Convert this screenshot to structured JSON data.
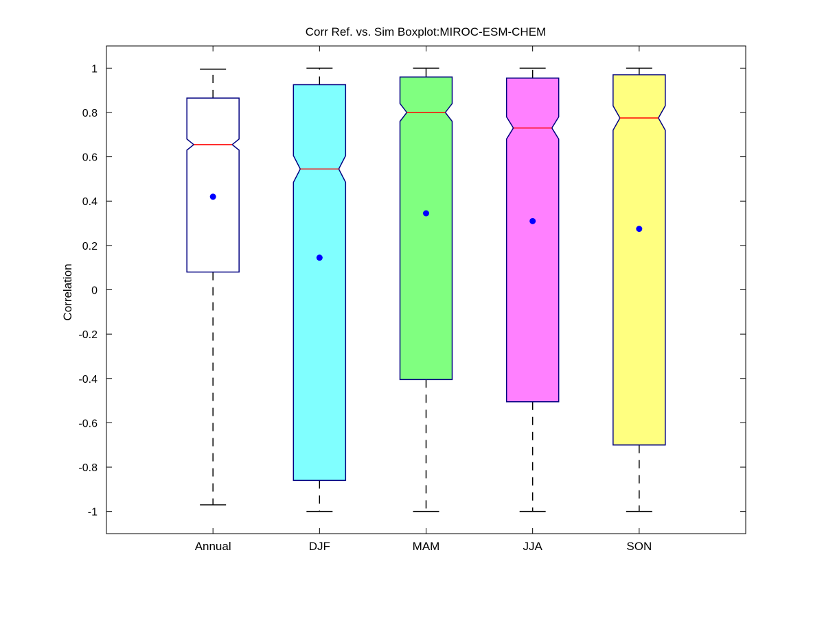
{
  "chart_data": {
    "type": "boxplot",
    "title": "Corr Ref. vs. Sim Boxplot:MIROC-ESM-CHEM",
    "xlabel": "",
    "ylabel": "Correlation",
    "ylim": [
      -1.1,
      1.1
    ],
    "yticks": [
      -1,
      -0.8,
      -0.6,
      -0.4,
      -0.2,
      0,
      0.2,
      0.4,
      0.6,
      0.8,
      1
    ],
    "ytick_labels": [
      "-1",
      "-0.8",
      "-0.6",
      "-0.4",
      "-0.2",
      "0",
      "0.2",
      "0.4",
      "0.6",
      "0.8",
      "1"
    ],
    "notched": true,
    "grid": false,
    "categories": [
      "Annual",
      "DJF",
      "MAM",
      "JJA",
      "SON"
    ],
    "boxes": [
      {
        "category": "Annual",
        "whisker_low": -0.97,
        "q1": 0.08,
        "median": 0.655,
        "q3": 0.865,
        "whisker_high": 0.995,
        "notch_low": 0.63,
        "notch_high": 0.68,
        "mean": 0.42,
        "fill": "#ffffff"
      },
      {
        "category": "DJF",
        "whisker_low": -1.0,
        "q1": -0.86,
        "median": 0.545,
        "q3": 0.925,
        "whisker_high": 1.0,
        "notch_low": 0.485,
        "notch_high": 0.605,
        "mean": 0.145,
        "fill": "#80ffff"
      },
      {
        "category": "MAM",
        "whisker_low": -1.0,
        "q1": -0.405,
        "median": 0.8,
        "q3": 0.96,
        "whisker_high": 1.0,
        "notch_low": 0.76,
        "notch_high": 0.84,
        "mean": 0.345,
        "fill": "#80ff80"
      },
      {
        "category": "JJA",
        "whisker_low": -1.0,
        "q1": -0.505,
        "median": 0.73,
        "q3": 0.955,
        "whisker_high": 1.0,
        "notch_low": 0.68,
        "notch_high": 0.78,
        "mean": 0.31,
        "fill": "#ff80ff"
      },
      {
        "category": "SON",
        "whisker_low": -1.0,
        "q1": -0.7,
        "median": 0.775,
        "q3": 0.97,
        "whisker_high": 1.0,
        "notch_low": 0.72,
        "notch_high": 0.83,
        "mean": 0.275,
        "fill": "#ffff80"
      }
    ],
    "colors": {
      "box_edge": "#000080",
      "median": "#ff0000",
      "mean_marker": "#0000ff",
      "whisker": "#000000"
    }
  }
}
